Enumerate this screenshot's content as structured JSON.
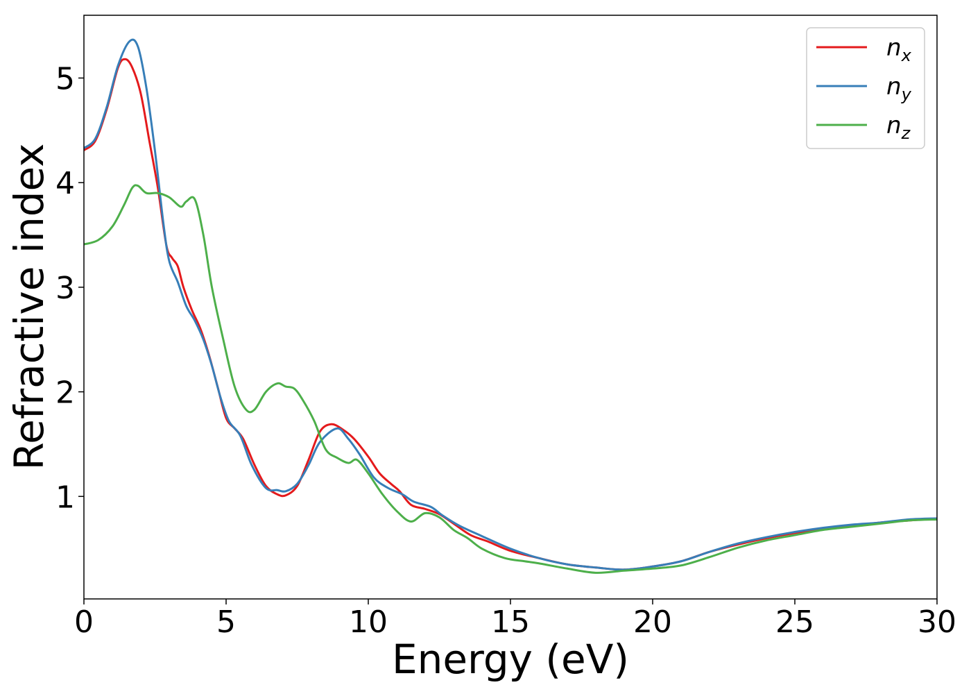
{
  "chart_data": {
    "type": "line",
    "title": "",
    "xlabel": "Energy (eV)",
    "ylabel": "Refractive index",
    "xlim": [
      0,
      30
    ],
    "ylim": [
      0.02,
      5.6
    ],
    "xticks": [
      0,
      5,
      10,
      15,
      20,
      25,
      30
    ],
    "yticks": [
      1,
      2,
      3,
      4,
      5
    ],
    "grid": false,
    "legend_position": "top-right",
    "series": [
      {
        "name": "n_x",
        "label_main": "n",
        "label_sub": "x",
        "color": "#e41a1c",
        "points": [
          [
            0,
            4.31
          ],
          [
            0.4,
            4.4
          ],
          [
            0.8,
            4.7
          ],
          [
            1.2,
            5.1
          ],
          [
            1.45,
            5.18
          ],
          [
            1.7,
            5.1
          ],
          [
            2.0,
            4.85
          ],
          [
            2.3,
            4.4
          ],
          [
            2.6,
            3.95
          ],
          [
            2.9,
            3.4
          ],
          [
            3.1,
            3.28
          ],
          [
            3.3,
            3.2
          ],
          [
            3.5,
            3.0
          ],
          [
            3.8,
            2.78
          ],
          [
            4.1,
            2.6
          ],
          [
            4.4,
            2.35
          ],
          [
            4.7,
            2.05
          ],
          [
            5.0,
            1.75
          ],
          [
            5.3,
            1.65
          ],
          [
            5.6,
            1.55
          ],
          [
            6.0,
            1.3
          ],
          [
            6.4,
            1.1
          ],
          [
            6.8,
            1.02
          ],
          [
            7.1,
            1.01
          ],
          [
            7.5,
            1.1
          ],
          [
            7.9,
            1.35
          ],
          [
            8.3,
            1.62
          ],
          [
            8.7,
            1.69
          ],
          [
            9.1,
            1.64
          ],
          [
            9.5,
            1.55
          ],
          [
            10.0,
            1.38
          ],
          [
            10.4,
            1.22
          ],
          [
            10.8,
            1.12
          ],
          [
            11.1,
            1.05
          ],
          [
            11.5,
            0.92
          ],
          [
            12.0,
            0.88
          ],
          [
            12.5,
            0.83
          ],
          [
            13.0,
            0.74
          ],
          [
            13.6,
            0.63
          ],
          [
            14.2,
            0.57
          ],
          [
            15.0,
            0.48
          ],
          [
            16.0,
            0.41
          ],
          [
            17.0,
            0.35
          ],
          [
            18.0,
            0.32
          ],
          [
            19.0,
            0.3
          ],
          [
            20.0,
            0.33
          ],
          [
            21.0,
            0.38
          ],
          [
            22.0,
            0.47
          ],
          [
            23.0,
            0.54
          ],
          [
            24.0,
            0.6
          ],
          [
            25.0,
            0.65
          ],
          [
            26.0,
            0.69
          ],
          [
            27.0,
            0.72
          ],
          [
            28.0,
            0.75
          ],
          [
            29.0,
            0.77
          ],
          [
            30.0,
            0.79
          ]
        ]
      },
      {
        "name": "n_y",
        "label_main": "n",
        "label_sub": "y",
        "color": "#377eb8",
        "points": [
          [
            0,
            4.33
          ],
          [
            0.4,
            4.42
          ],
          [
            0.8,
            4.72
          ],
          [
            1.2,
            5.12
          ],
          [
            1.6,
            5.35
          ],
          [
            1.9,
            5.3
          ],
          [
            2.2,
            4.9
          ],
          [
            2.5,
            4.3
          ],
          [
            2.8,
            3.6
          ],
          [
            3.0,
            3.25
          ],
          [
            3.3,
            3.05
          ],
          [
            3.6,
            2.82
          ],
          [
            3.9,
            2.68
          ],
          [
            4.2,
            2.5
          ],
          [
            4.5,
            2.25
          ],
          [
            4.8,
            1.95
          ],
          [
            5.1,
            1.72
          ],
          [
            5.5,
            1.58
          ],
          [
            5.9,
            1.3
          ],
          [
            6.4,
            1.08
          ],
          [
            6.8,
            1.06
          ],
          [
            7.1,
            1.05
          ],
          [
            7.5,
            1.12
          ],
          [
            7.9,
            1.3
          ],
          [
            8.3,
            1.52
          ],
          [
            8.9,
            1.65
          ],
          [
            9.3,
            1.55
          ],
          [
            9.7,
            1.4
          ],
          [
            10.2,
            1.18
          ],
          [
            10.7,
            1.08
          ],
          [
            11.2,
            1.02
          ],
          [
            11.6,
            0.95
          ],
          [
            12.2,
            0.9
          ],
          [
            12.6,
            0.82
          ],
          [
            13.2,
            0.72
          ],
          [
            14.0,
            0.62
          ],
          [
            15.0,
            0.5
          ],
          [
            16.0,
            0.41
          ],
          [
            17.0,
            0.35
          ],
          [
            18.0,
            0.32
          ],
          [
            19.0,
            0.3
          ],
          [
            20.0,
            0.33
          ],
          [
            21.0,
            0.38
          ],
          [
            22.0,
            0.47
          ],
          [
            23.0,
            0.55
          ],
          [
            24.0,
            0.61
          ],
          [
            25.0,
            0.66
          ],
          [
            26.0,
            0.7
          ],
          [
            27.0,
            0.73
          ],
          [
            28.0,
            0.75
          ],
          [
            29.0,
            0.78
          ],
          [
            30.0,
            0.79
          ]
        ]
      },
      {
        "name": "n_z",
        "label_main": "n",
        "label_sub": "z",
        "color": "#4daf4a",
        "points": [
          [
            0,
            3.41
          ],
          [
            0.5,
            3.45
          ],
          [
            1.0,
            3.58
          ],
          [
            1.4,
            3.78
          ],
          [
            1.7,
            3.95
          ],
          [
            1.9,
            3.97
          ],
          [
            2.2,
            3.9
          ],
          [
            2.6,
            3.9
          ],
          [
            3.0,
            3.86
          ],
          [
            3.4,
            3.77
          ],
          [
            3.6,
            3.82
          ],
          [
            3.9,
            3.84
          ],
          [
            4.2,
            3.5
          ],
          [
            4.5,
            3.0
          ],
          [
            4.9,
            2.5
          ],
          [
            5.3,
            2.05
          ],
          [
            5.7,
            1.83
          ],
          [
            6.0,
            1.83
          ],
          [
            6.4,
            2.0
          ],
          [
            6.8,
            2.08
          ],
          [
            7.1,
            2.05
          ],
          [
            7.4,
            2.03
          ],
          [
            7.7,
            1.92
          ],
          [
            8.1,
            1.72
          ],
          [
            8.5,
            1.45
          ],
          [
            8.9,
            1.37
          ],
          [
            9.3,
            1.32
          ],
          [
            9.6,
            1.35
          ],
          [
            10.0,
            1.22
          ],
          [
            10.5,
            1.02
          ],
          [
            11.0,
            0.86
          ],
          [
            11.5,
            0.76
          ],
          [
            12.0,
            0.84
          ],
          [
            12.5,
            0.8
          ],
          [
            13.0,
            0.68
          ],
          [
            13.5,
            0.6
          ],
          [
            14.0,
            0.5
          ],
          [
            14.8,
            0.41
          ],
          [
            15.5,
            0.38
          ],
          [
            16.0,
            0.36
          ],
          [
            17.0,
            0.31
          ],
          [
            18.0,
            0.27
          ],
          [
            19.0,
            0.29
          ],
          [
            20.0,
            0.31
          ],
          [
            21.0,
            0.34
          ],
          [
            22.0,
            0.42
          ],
          [
            23.0,
            0.51
          ],
          [
            24.0,
            0.58
          ],
          [
            25.0,
            0.63
          ],
          [
            26.0,
            0.68
          ],
          [
            27.0,
            0.71
          ],
          [
            28.0,
            0.74
          ],
          [
            29.0,
            0.77
          ],
          [
            30.0,
            0.78
          ]
        ]
      }
    ]
  }
}
